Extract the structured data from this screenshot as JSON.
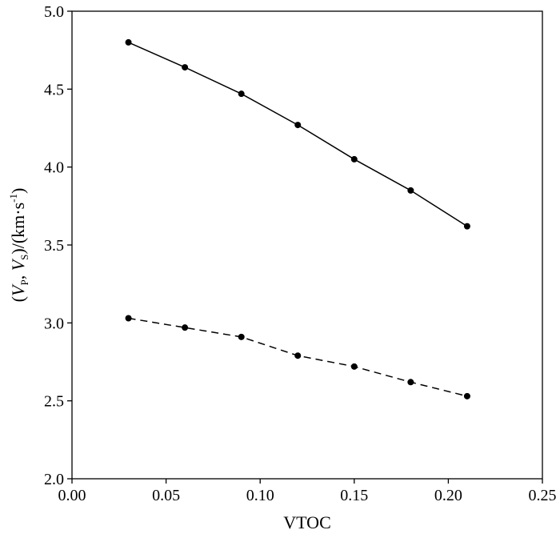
{
  "chart_data": {
    "type": "line",
    "xlabel": "VTOC",
    "ylabel": {
      "open": "(",
      "v1": "V",
      "sub1": "P",
      "sep": ", ",
      "v2": "V",
      "sub2": "S",
      "mid": ")/(km·s",
      "sup": "-1",
      "close": ")"
    },
    "xlim": [
      0.0,
      0.25
    ],
    "ylim": [
      2.0,
      5.0
    ],
    "x_ticks": [
      0.0,
      0.05,
      0.1,
      0.15,
      0.2,
      0.25
    ],
    "x_tick_labels": [
      "0.00",
      "0.05",
      "0.10",
      "0.15",
      "0.20",
      "0.25"
    ],
    "y_ticks": [
      2.0,
      2.5,
      3.0,
      3.5,
      4.0,
      4.5,
      5.0
    ],
    "y_tick_labels": [
      "2.0",
      "2.5",
      "3.0",
      "3.5",
      "4.0",
      "4.5",
      "5.0"
    ],
    "grid": false,
    "legend": "none",
    "x": [
      0.03,
      0.06,
      0.09,
      0.12,
      0.15,
      0.18,
      0.21
    ],
    "series": [
      {
        "values": [
          4.8,
          4.64,
          4.47,
          4.27,
          4.05,
          3.85,
          3.62
        ],
        "line_style": "solid",
        "marker": "circle",
        "color": "#000000"
      },
      {
        "values": [
          3.03,
          2.97,
          2.91,
          2.79,
          2.72,
          2.62,
          2.53
        ],
        "line_style": "dashed",
        "marker": "circle",
        "color": "#000000"
      }
    ]
  }
}
